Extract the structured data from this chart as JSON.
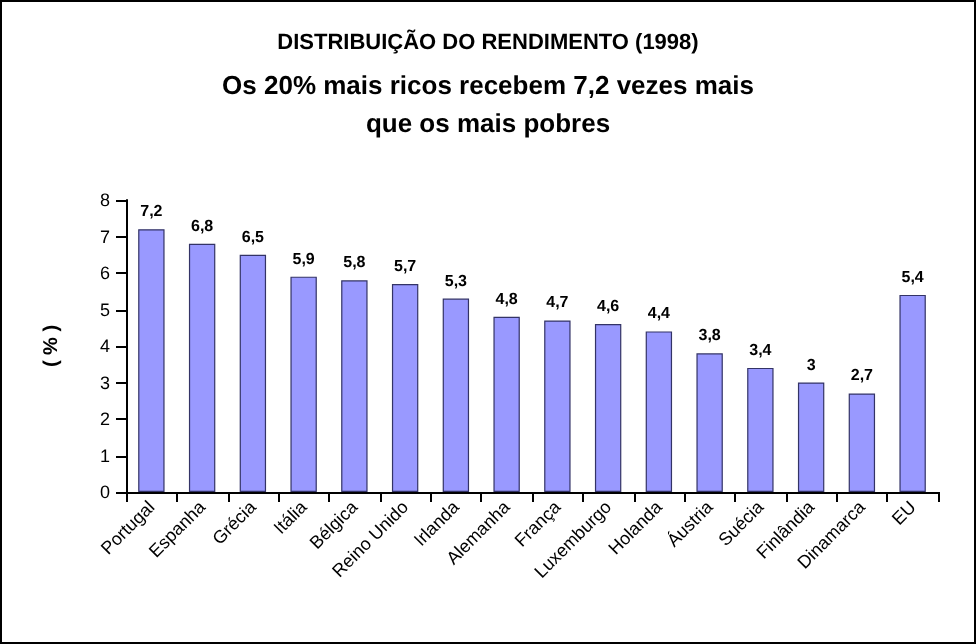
{
  "chart_data": {
    "type": "bar",
    "title": "DISTRIBUIÇÃO DO RENDIMENTO (1998)",
    "subtitle": "Os 20% mais ricos recebem 7,2 vezes mais\nque os mais pobres",
    "ylabel": "( % )",
    "categories": [
      "Portugal",
      "Espanha",
      "Grécia",
      "Itália",
      "Bélgica",
      "Reino Unido",
      "Irlanda",
      "Alemanha",
      "França",
      "Luxemburgo",
      "Holanda",
      "Áustria",
      "Suécia",
      "Finlândia",
      "Dinamarca",
      "EU"
    ],
    "values": [
      7.2,
      6.8,
      6.5,
      5.9,
      5.8,
      5.7,
      5.3,
      4.8,
      4.7,
      4.6,
      4.4,
      3.8,
      3.4,
      3,
      2.7,
      5.4
    ],
    "value_labels": [
      "7,2",
      "6,8",
      "6,5",
      "5,9",
      "5,8",
      "5,7",
      "5,3",
      "4,8",
      "4,7",
      "4,6",
      "4,4",
      "3,8",
      "3,4",
      "3",
      "2,7",
      "5,4"
    ],
    "color": "#9999ff",
    "ylim": [
      0,
      8
    ],
    "yticks": [
      0,
      1,
      2,
      3,
      4,
      5,
      6,
      7,
      8
    ],
    "grid": false
  }
}
